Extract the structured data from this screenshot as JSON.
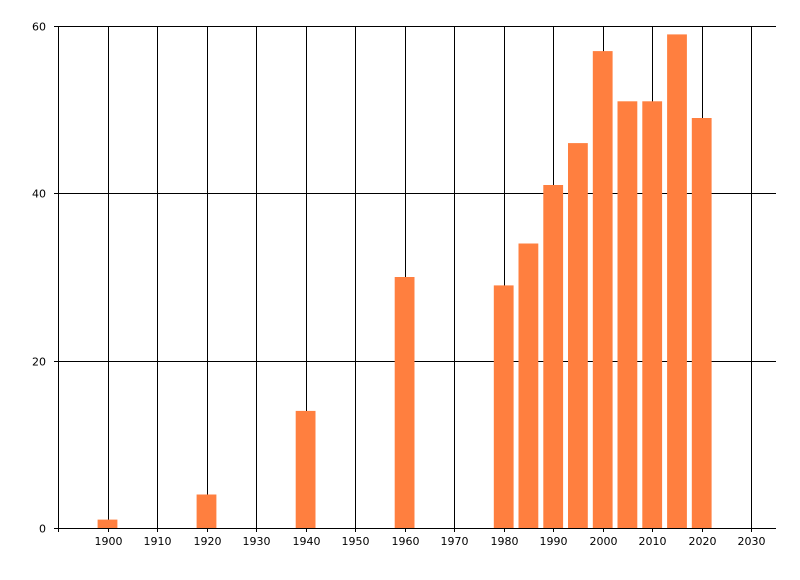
{
  "chart_data": {
    "type": "bar",
    "title": "",
    "xlabel": "",
    "ylabel": "",
    "xlim": [
      1890,
      2035
    ],
    "ylim": [
      0,
      60
    ],
    "grid": true,
    "x_ticks": [
      1900,
      1910,
      1920,
      1930,
      1940,
      1950,
      1960,
      1970,
      1980,
      1990,
      2000,
      2010,
      2020,
      2030
    ],
    "y_ticks": [
      0,
      20,
      40,
      60
    ],
    "bar_color": "#ff7f3f",
    "bar_width_years": 4,
    "series": [
      {
        "x": [
          1900,
          1920,
          1940,
          1960,
          1980,
          1985,
          1990,
          1995,
          2000,
          2005,
          2010,
          2015,
          2020
        ],
        "values": [
          1,
          4,
          14,
          30,
          29,
          34,
          41,
          46,
          57,
          51,
          51,
          59,
          49
        ]
      }
    ]
  }
}
